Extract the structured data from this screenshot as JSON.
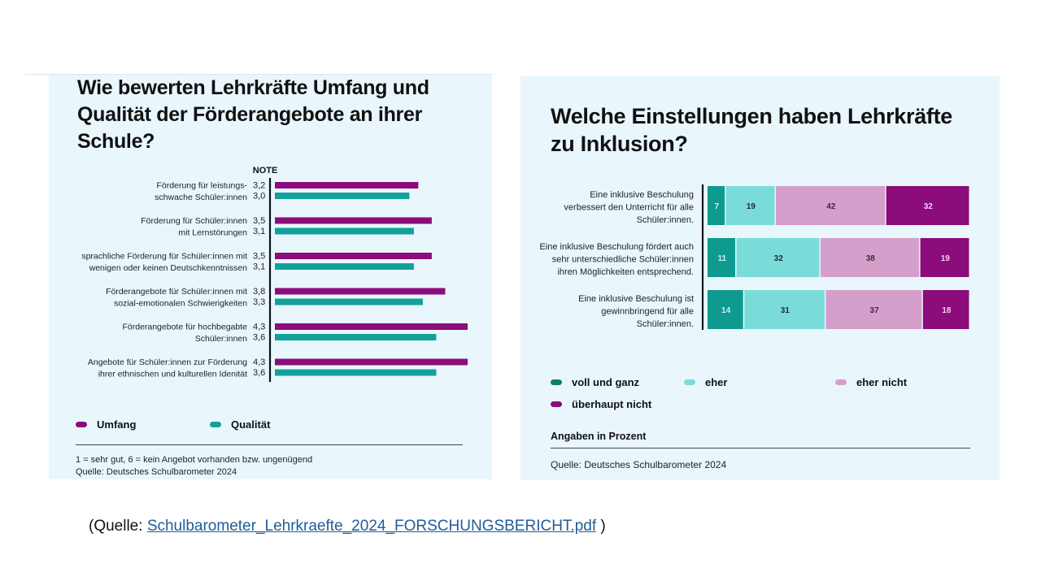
{
  "footer": {
    "prefix": "(Quelle: ",
    "link_text": "Schulbarometer_Lehrkraefte_2024_FORSCHUNGSBERICHT.pdf",
    "suffix": " )"
  },
  "colors": {
    "umfang": "#8b0c7a",
    "qualitaet": "#12a19a",
    "voll_und_ganz": "#0f9a90",
    "eher": "#79dcd8",
    "eher_nicht": "#d59fcb",
    "ueberhaupt_nicht": "#8b0c7a",
    "panel_bg": "#e9f7fd"
  },
  "chart_data": [
    {
      "type": "bar",
      "orientation": "horizontal",
      "title": "Wie bewerten Lehrkräfte Umfang und Qualität der Förderangebote an ihrer Schule?",
      "value_header": "NOTE",
      "categories": [
        [
          "Förderung für leistungs-",
          "schwache Schüler:innen"
        ],
        [
          "Förderung für Schüler:innen",
          "mit Lernstörungen"
        ],
        [
          "sprachliche Förderung für Schüler:innen mit",
          "wenigen oder keinen Deutschkenntnissen"
        ],
        [
          "Förderangebote für Schüler:innen mit",
          "sozial-emotionalen Schwierigkeiten"
        ],
        [
          "Förderangebote für hochbegabte",
          "Schüler:innen"
        ],
        [
          "Angebote für Schüler:innen zur Förderung",
          "ihrer ethnischen und kulturellen Idenität"
        ]
      ],
      "series": [
        {
          "name": "Umfang",
          "values": [
            3.2,
            3.5,
            3.5,
            3.8,
            4.3,
            4.3
          ],
          "labels": [
            "3,2",
            "3,5",
            "3,5",
            "3,8",
            "4,3",
            "4,3"
          ]
        },
        {
          "name": "Qualität",
          "values": [
            3.0,
            3.1,
            3.1,
            3.3,
            3.6,
            3.6
          ],
          "labels": [
            "3,0",
            "3,1",
            "3,1",
            "3,3",
            "3,6",
            "3,6"
          ]
        }
      ],
      "xlim": [
        0,
        4.3
      ],
      "legend": [
        "Umfang",
        "Qualität"
      ],
      "legend_position": "bottom-left",
      "notes": [
        "1 = sehr gut, 6 = kein Angebot vorhanden bzw. ungenügend",
        "Quelle: Deutsches Schulbarometer 2024"
      ]
    },
    {
      "type": "bar",
      "orientation": "horizontal",
      "stacked": true,
      "title": "Welche Einstellungen haben Lehrkräfte zu Inklusion?",
      "categories": [
        [
          "Eine inklusive Beschulung",
          "verbessert den Unterricht für alle",
          "Schüler:innen."
        ],
        [
          "Eine inklusive Beschulung fördert auch",
          "sehr unterschiedliche Schüler:innen",
          "ihren Möglichkeiten entsprechend."
        ],
        [
          "Eine inklusive Beschulung ist",
          "gewinnbringend  für alle",
          "Schüler:innen."
        ]
      ],
      "series": [
        {
          "name": "voll und ganz",
          "values": [
            7,
            11,
            14
          ]
        },
        {
          "name": "eher",
          "values": [
            19,
            32,
            31
          ]
        },
        {
          "name": "eher nicht",
          "values": [
            42,
            38,
            37
          ]
        },
        {
          "name": "überhaupt nicht",
          "values": [
            32,
            19,
            18
          ]
        }
      ],
      "unit": "Prozent",
      "legend": [
        "voll und ganz",
        "eher",
        "eher nicht",
        "überhaupt nicht"
      ],
      "legend_position": "bottom",
      "notes": [
        "Angaben in Prozent",
        "Quelle: Deutsches Schulbarometer 2024"
      ]
    }
  ]
}
